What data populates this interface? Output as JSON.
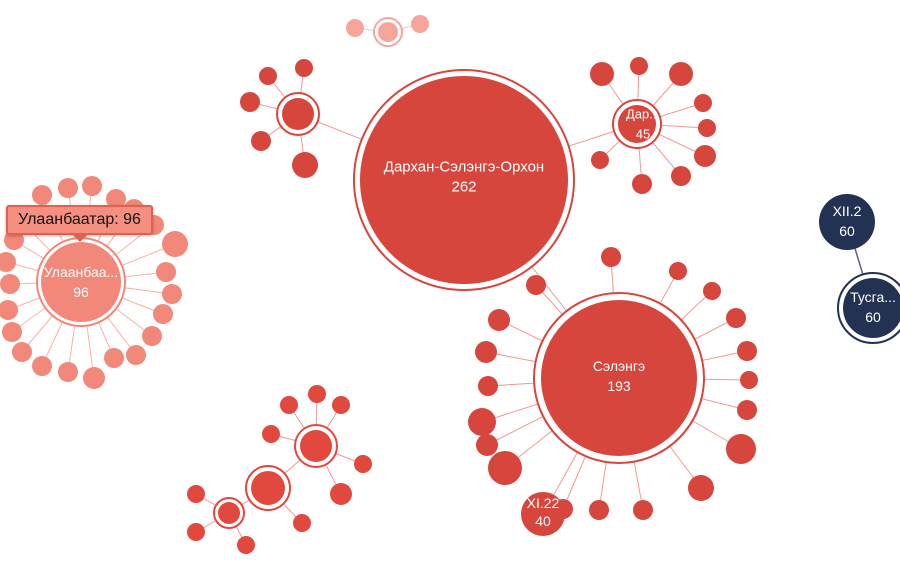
{
  "colors": {
    "red": "#d7463d",
    "light_red": "#f28879",
    "faded_red": "#f5a59c",
    "navy": "#233153",
    "link_red": "#ef9a92",
    "link_navy": "#5a6380"
  },
  "tooltip": {
    "text": "Улаанбаатар: 96"
  },
  "nodes": [
    {
      "id": "darkhan",
      "label": "Дархан-Сэлэнгэ-Орхон",
      "value": "262"
    },
    {
      "id": "selenge",
      "label": "Сэлэнгэ",
      "value": "193"
    },
    {
      "id": "ulaanbaatar",
      "label": "Улаанбаа...",
      "value": "96"
    },
    {
      "id": "dar45",
      "label": "Дар...",
      "value": "45"
    },
    {
      "id": "xi22",
      "label": "XI.22",
      "value": "40"
    },
    {
      "id": "xii2",
      "label": "XII.2",
      "value": "60"
    },
    {
      "id": "tusga",
      "label": "Тусга...",
      "value": "60"
    }
  ]
}
